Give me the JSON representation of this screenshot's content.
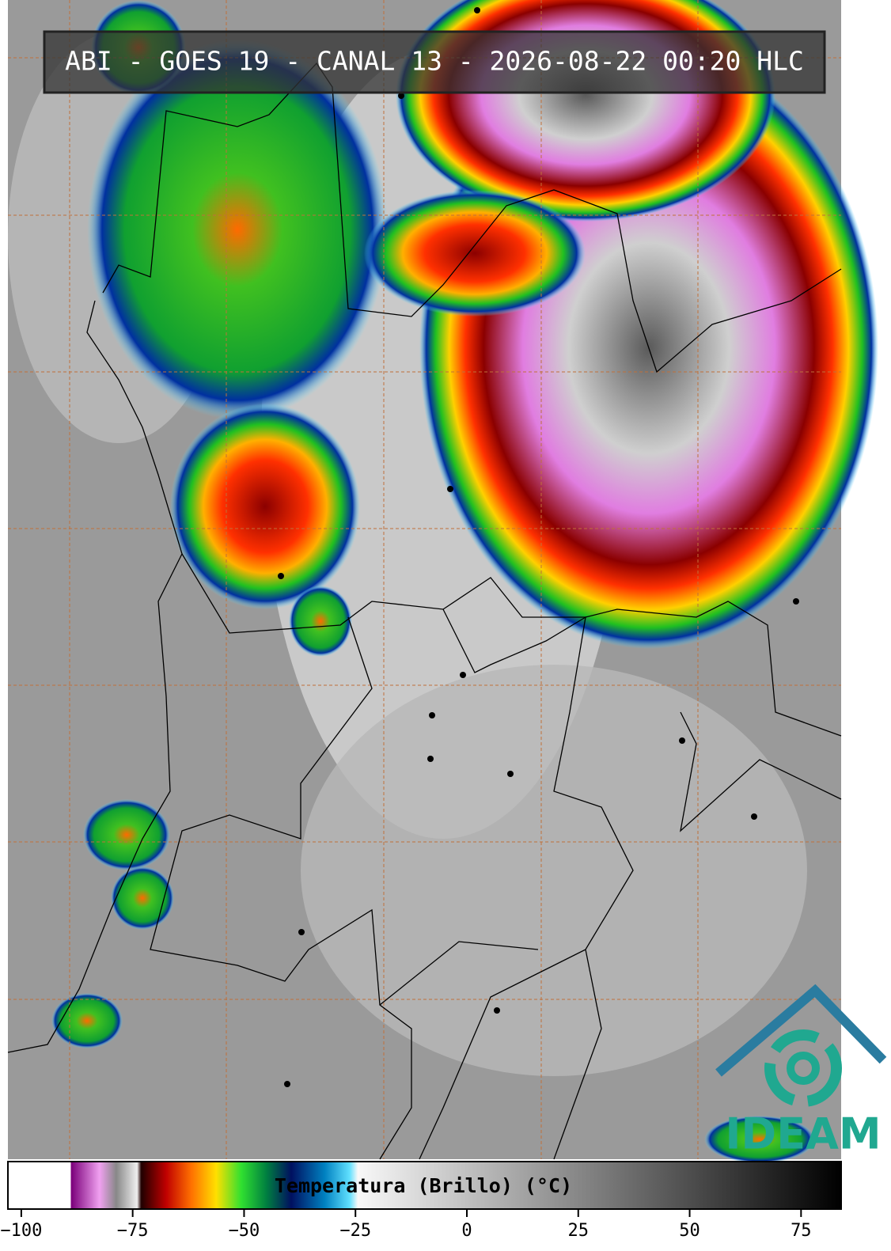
{
  "header": {
    "title": "ABI - GOES 19 - CANAL 13 - 2026-08-22 00:20 HLC"
  },
  "logo": {
    "text": "IDEAM"
  },
  "chart_data": {
    "type": "colorbar",
    "label": "Temperatura (Brillo) (°C)",
    "xlim": [
      -103,
      84
    ],
    "xticks": [
      {
        "value": -100,
        "label": "−100"
      },
      {
        "value": -75,
        "label": "−75"
      },
      {
        "value": -50,
        "label": "−50"
      },
      {
        "value": -25,
        "label": "−25"
      },
      0,
      25,
      50,
      75
    ]
  }
}
